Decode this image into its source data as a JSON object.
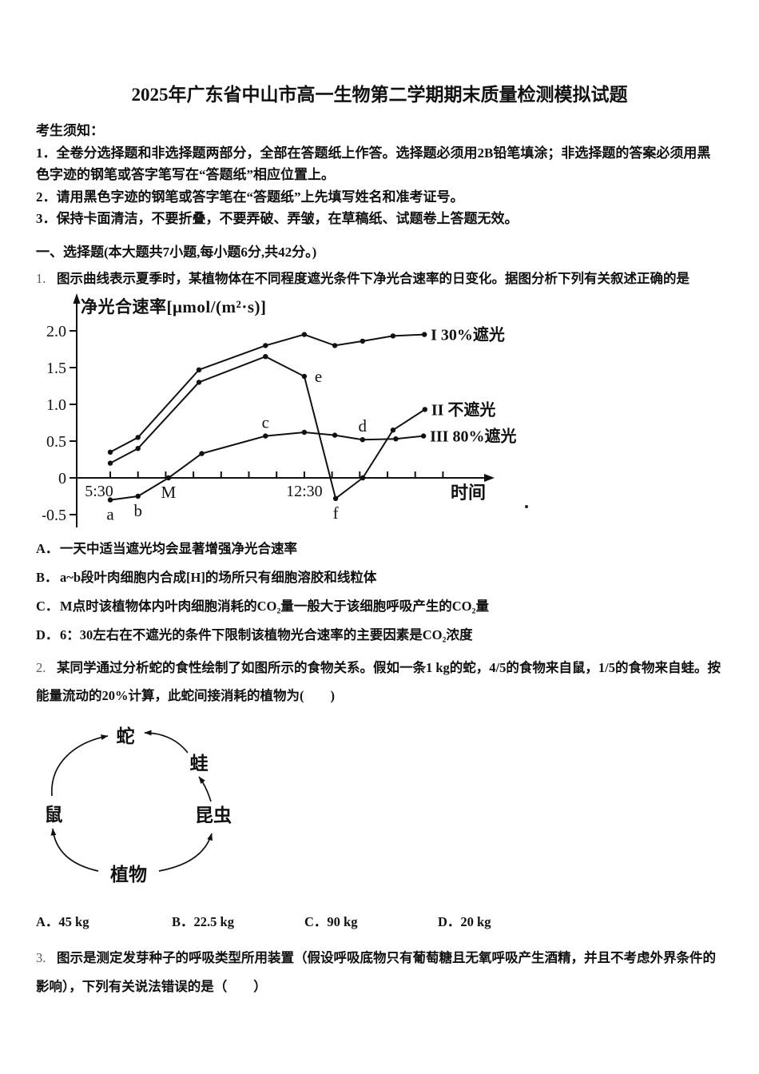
{
  "page": {
    "title": "2025年广东省中山市高一生物第二学期期末质量检测模拟试题"
  },
  "notice": {
    "heading": "考生须知：",
    "items": [
      "1．全卷分选择题和非选择题两部分，全部在答题纸上作答。选择题必须用2B铅笔填涂；非选择题的答案必须用黑色字迹的钢笔或答字笔写在“答题纸”相应位置上。",
      "2．请用黑色字迹的钢笔或答字笔在“答题纸”上先填写姓名和准考证号。",
      "3．保持卡面清洁，不要折叠，不要弄破、弄皱，在草稿纸、试题卷上答题无效。"
    ]
  },
  "section1": {
    "heading": "一、选择题(本大题共7小题,每小题6分,共42分。)"
  },
  "q1": {
    "number": "1.",
    "text": "图示曲线表示夏季时，某植物体在不同程度遮光条件下净光合速率的日变化。据图分析下列有关叙述正确的是",
    "options": [
      {
        "label": "A．",
        "text": "一天中适当遮光均会显著增强净光合速率"
      },
      {
        "label": "B．",
        "text": "a~b段叶肉细胞内合成[H]的场所只有细胞溶胶和线粒体"
      },
      {
        "label": "C．",
        "text": "M点时该植物体内叶肉细胞消耗的CO₂量一般大于该细胞呼吸产生的CO₂量"
      },
      {
        "label": "D．",
        "text": "6：30左右在不遮光的条件下限制该植物光合速率的主要因素是CO₂浓度"
      }
    ]
  },
  "chart_data": {
    "type": "line",
    "title": "净光合速率[μmol/(m²·s)]",
    "xlabel": "时间",
    "ylabel": "净光合速率",
    "ylim": [
      -0.5,
      2.0
    ],
    "grid": false,
    "legend_position": "right-of-line-ends",
    "y_ticks": [
      {
        "v": 2.0,
        "label": "2.0"
      },
      {
        "v": 1.5,
        "label": "1.5"
      },
      {
        "v": 1.0,
        "label": "1.0"
      },
      {
        "v": 0.5,
        "label": "0.5"
      },
      {
        "v": 0,
        "label": "0"
      },
      {
        "v": -0.5,
        "label": "-0.5"
      }
    ],
    "x_tick_labels": [
      {
        "t": 0,
        "label": "5:30",
        "dx": -14
      },
      {
        "t": 7,
        "label": "12:30",
        "dx": 0
      }
    ],
    "series": [
      {
        "name": "I 30%遮光",
        "points": [
          [
            0,
            0.35
          ],
          [
            1,
            0.55
          ],
          [
            3.2,
            1.47
          ],
          [
            5.6,
            1.8
          ],
          [
            7,
            1.95
          ],
          [
            8.1,
            1.8
          ],
          [
            9.1,
            1.86
          ],
          [
            10.2,
            1.93
          ],
          [
            11.33,
            1.95
          ]
        ]
      },
      {
        "name": "II 不遮光",
        "points": [
          [
            0,
            0.2
          ],
          [
            1,
            0.4
          ],
          [
            3.2,
            1.3
          ],
          [
            5.6,
            1.65
          ],
          [
            7,
            1.38
          ],
          [
            8.13,
            -0.28
          ],
          [
            9.11,
            0
          ],
          [
            10.2,
            0.65
          ],
          [
            11.35,
            0.93
          ]
        ]
      },
      {
        "name": "III 80%遮光",
        "points": [
          [
            0,
            -0.3
          ],
          [
            1,
            -0.25
          ],
          [
            2.1,
            0
          ],
          [
            3.3,
            0.33
          ],
          [
            5.6,
            0.57
          ],
          [
            7,
            0.62
          ],
          [
            8.1,
            0.58
          ],
          [
            9.1,
            0.52
          ],
          [
            10.3,
            0.53
          ],
          [
            11.3,
            0.57
          ]
        ]
      }
    ],
    "annotations": [
      {
        "text": "a",
        "t": 0,
        "v": -0.3,
        "anchor": "below"
      },
      {
        "text": "b",
        "t": 1,
        "v": -0.25,
        "anchor": "below"
      },
      {
        "text": "M",
        "t": 2.1,
        "v": 0,
        "anchor": "below"
      },
      {
        "text": "c",
        "t": 5.6,
        "v": 0.57,
        "anchor": "above"
      },
      {
        "text": "e",
        "t": 7,
        "v": 1.38,
        "anchor": "right"
      },
      {
        "text": "d",
        "t": 9.1,
        "v": 0.52,
        "anchor": "above"
      },
      {
        "text": "f",
        "t": 8.13,
        "v": -0.28,
        "anchor": "below"
      }
    ]
  },
  "q2": {
    "number": "2.",
    "text": "某同学通过分析蛇的食性绘制了如图所示的食物关系。假如一条1 kg的蛇，4/5的食物来自鼠，1/5的食物来自蛙。按能量流动的20%计算，此蛇间接消耗的植物为(　　)",
    "options": [
      {
        "label": "A．",
        "text": "45 kg"
      },
      {
        "label": "B．",
        "text": "22.5 kg"
      },
      {
        "label": "C．",
        "text": "90 kg"
      },
      {
        "label": "D．",
        "text": "20 kg"
      }
    ]
  },
  "food_web": {
    "nodes": [
      {
        "id": "snake",
        "label": "蛇"
      },
      {
        "id": "frog",
        "label": "蛙"
      },
      {
        "id": "insect",
        "label": "昆虫"
      },
      {
        "id": "plant",
        "label": "植物"
      },
      {
        "id": "mouse",
        "label": "鼠"
      }
    ],
    "edges": [
      {
        "from": "植物",
        "to": "鼠"
      },
      {
        "from": "植物",
        "to": "昆虫"
      },
      {
        "from": "昆虫",
        "to": "蛙"
      },
      {
        "from": "蛙",
        "to": "蛇"
      },
      {
        "from": "鼠",
        "to": "蛇"
      }
    ]
  },
  "q3": {
    "number": "3.",
    "text": "图示是测定发芽种子的呼吸类型所用装置（假设呼吸底物只有葡萄糖且无氧呼吸产生酒精，并且不考虑外界条件的影响），下列有关说法错误的是（　　）"
  }
}
